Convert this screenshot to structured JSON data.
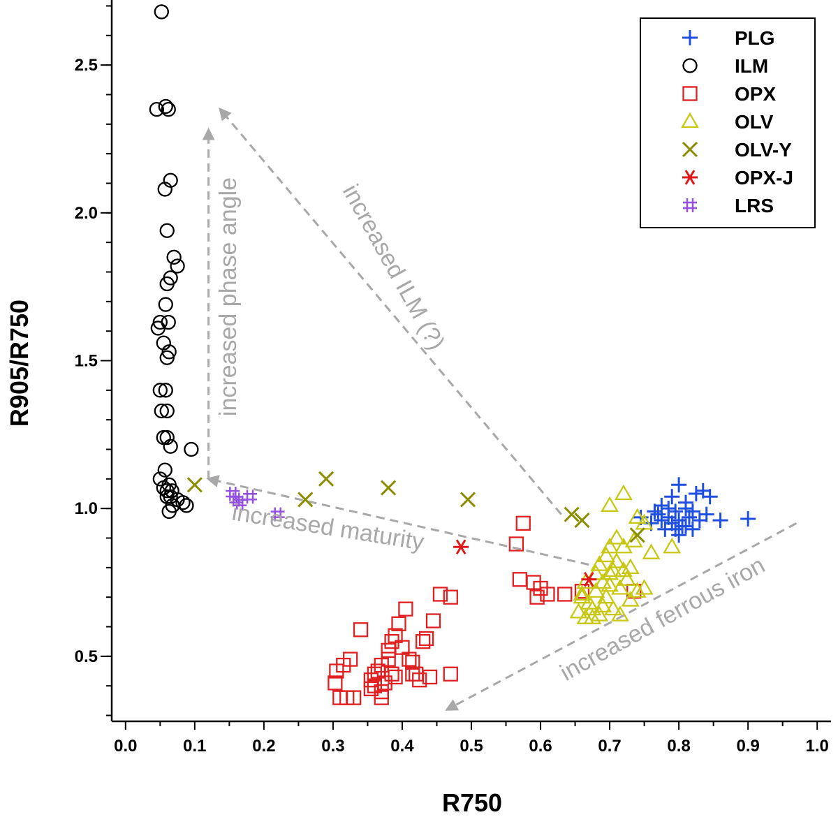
{
  "chart_data": {
    "type": "scatter",
    "xlabel": "R750",
    "ylabel": "R905/R750",
    "xlim": [
      -0.02,
      1.02
    ],
    "ylim": [
      0.28,
      2.72
    ],
    "x_ticks": [
      "0.0",
      "0.1",
      "0.2",
      "0.3",
      "0.4",
      "0.5",
      "0.6",
      "0.7",
      "0.8",
      "0.9",
      "1.0"
    ],
    "x_tick_values": [
      0,
      0.1,
      0.2,
      0.3,
      0.4,
      0.5,
      0.6,
      0.7,
      0.8,
      0.9,
      1.0
    ],
    "y_ticks": [
      "0.5",
      "1.0",
      "1.5",
      "2.0",
      "2.5"
    ],
    "y_tick_values": [
      0.5,
      1.0,
      1.5,
      2.0,
      2.5
    ],
    "legend_position": "top-right",
    "grid": false,
    "series": [
      {
        "name": "PLG",
        "marker": "plus",
        "color": "#1f4fe0",
        "points": [
          [
            0.745,
            0.97
          ],
          [
            0.76,
            0.95
          ],
          [
            0.77,
            0.98
          ],
          [
            0.775,
            1.01
          ],
          [
            0.78,
            0.93
          ],
          [
            0.785,
            0.97
          ],
          [
            0.79,
            0.95
          ],
          [
            0.79,
            1.04
          ],
          [
            0.795,
            0.99
          ],
          [
            0.8,
            0.96
          ],
          [
            0.8,
            1.08
          ],
          [
            0.805,
            0.94
          ],
          [
            0.81,
            1.0
          ],
          [
            0.81,
            1.02
          ],
          [
            0.815,
            0.97
          ],
          [
            0.82,
            0.93
          ],
          [
            0.82,
            0.99
          ],
          [
            0.825,
            1.05
          ],
          [
            0.83,
            0.96
          ],
          [
            0.835,
            1.06
          ],
          [
            0.84,
            0.98
          ],
          [
            0.845,
            1.04
          ],
          [
            0.86,
            0.96
          ],
          [
            0.9,
            0.965
          ],
          [
            0.775,
            0.96
          ],
          [
            0.8,
            0.91
          ],
          [
            0.785,
            1.0
          ],
          [
            0.765,
            0.99
          ],
          [
            0.81,
            0.94
          ],
          [
            0.795,
            0.93
          ]
        ]
      },
      {
        "name": "ILM",
        "marker": "circle",
        "color": "#000000",
        "points": [
          [
            0.052,
            2.68
          ],
          [
            0.045,
            2.35
          ],
          [
            0.058,
            2.36
          ],
          [
            0.062,
            2.35
          ],
          [
            0.065,
            2.11
          ],
          [
            0.057,
            2.08
          ],
          [
            0.06,
            1.94
          ],
          [
            0.07,
            1.85
          ],
          [
            0.075,
            1.82
          ],
          [
            0.065,
            1.78
          ],
          [
            0.06,
            1.76
          ],
          [
            0.058,
            1.69
          ],
          [
            0.05,
            1.63
          ],
          [
            0.062,
            1.63
          ],
          [
            0.047,
            1.61
          ],
          [
            0.055,
            1.56
          ],
          [
            0.063,
            1.53
          ],
          [
            0.06,
            1.51
          ],
          [
            0.05,
            1.4
          ],
          [
            0.058,
            1.4
          ],
          [
            0.052,
            1.33
          ],
          [
            0.06,
            1.33
          ],
          [
            0.055,
            1.24
          ],
          [
            0.06,
            1.24
          ],
          [
            0.065,
            1.21
          ],
          [
            0.095,
            1.2
          ],
          [
            0.057,
            1.13
          ],
          [
            0.05,
            1.1
          ],
          [
            0.063,
            1.08
          ],
          [
            0.055,
            1.07
          ],
          [
            0.06,
            1.06
          ],
          [
            0.067,
            1.06
          ],
          [
            0.06,
            1.04
          ],
          [
            0.065,
            1.04
          ],
          [
            0.075,
            1.03
          ],
          [
            0.083,
            1.02
          ],
          [
            0.088,
            1.01
          ],
          [
            0.068,
            1.01
          ],
          [
            0.063,
            0.99
          ]
        ]
      },
      {
        "name": "OPX",
        "marker": "square",
        "color": "#e02020",
        "points": [
          [
            0.303,
            0.41
          ],
          [
            0.31,
            0.36
          ],
          [
            0.305,
            0.45
          ],
          [
            0.315,
            0.47
          ],
          [
            0.32,
            0.36
          ],
          [
            0.325,
            0.49
          ],
          [
            0.33,
            0.36
          ],
          [
            0.34,
            0.59
          ],
          [
            0.355,
            0.42
          ],
          [
            0.36,
            0.4
          ],
          [
            0.365,
            0.45
          ],
          [
            0.37,
            0.47
          ],
          [
            0.37,
            0.38
          ],
          [
            0.375,
            0.41
          ],
          [
            0.38,
            0.52
          ],
          [
            0.385,
            0.55
          ],
          [
            0.39,
            0.57
          ],
          [
            0.395,
            0.61
          ],
          [
            0.385,
            0.44
          ],
          [
            0.38,
            0.49
          ],
          [
            0.39,
            0.43
          ],
          [
            0.405,
            0.66
          ],
          [
            0.41,
            0.49
          ],
          [
            0.415,
            0.44
          ],
          [
            0.42,
            0.44
          ],
          [
            0.425,
            0.42
          ],
          [
            0.43,
            0.55
          ],
          [
            0.435,
            0.56
          ],
          [
            0.44,
            0.43
          ],
          [
            0.445,
            0.62
          ],
          [
            0.455,
            0.71
          ],
          [
            0.37,
            0.36
          ],
          [
            0.36,
            0.44
          ],
          [
            0.355,
            0.39
          ],
          [
            0.4,
            0.53
          ],
          [
            0.47,
            0.7
          ],
          [
            0.47,
            0.44
          ],
          [
            0.565,
            0.88
          ],
          [
            0.575,
            0.95
          ],
          [
            0.57,
            0.76
          ],
          [
            0.59,
            0.75
          ],
          [
            0.6,
            0.73
          ],
          [
            0.595,
            0.7
          ],
          [
            0.61,
            0.71
          ],
          [
            0.635,
            0.71
          ],
          [
            0.66,
            0.72
          ],
          [
            0.735,
            0.72
          ],
          [
            0.415,
            0.48
          ]
        ]
      },
      {
        "name": "OLV",
        "marker": "triangle",
        "color": "#c8c814",
        "points": [
          [
            0.655,
            0.65
          ],
          [
            0.66,
            0.7
          ],
          [
            0.665,
            0.63
          ],
          [
            0.67,
            0.68
          ],
          [
            0.675,
            0.66
          ],
          [
            0.68,
            0.72
          ],
          [
            0.685,
            0.64
          ],
          [
            0.69,
            0.75
          ],
          [
            0.695,
            0.7
          ],
          [
            0.7,
            0.78
          ],
          [
            0.705,
            0.66
          ],
          [
            0.71,
            0.82
          ],
          [
            0.715,
            0.73
          ],
          [
            0.72,
            0.87
          ],
          [
            0.725,
            0.76
          ],
          [
            0.73,
            0.8
          ],
          [
            0.735,
            0.89
          ],
          [
            0.74,
            0.72
          ],
          [
            0.74,
            0.97
          ],
          [
            0.7,
            0.87
          ],
          [
            0.7,
            1.01
          ],
          [
            0.72,
            1.05
          ],
          [
            0.75,
            0.95
          ],
          [
            0.76,
            0.85
          ],
          [
            0.79,
            0.87
          ],
          [
            0.665,
            0.75
          ],
          [
            0.68,
            0.78
          ],
          [
            0.69,
            0.67
          ],
          [
            0.7,
            0.74
          ],
          [
            0.71,
            0.9
          ],
          [
            0.72,
            0.79
          ],
          [
            0.73,
            0.69
          ],
          [
            0.75,
            0.73
          ],
          [
            0.66,
            0.71
          ],
          [
            0.695,
            0.84
          ],
          [
            0.685,
            0.81
          ],
          [
            0.705,
            0.79
          ],
          [
            0.715,
            0.64
          ],
          [
            0.675,
            0.63
          ]
        ]
      },
      {
        "name": "OLV-Y",
        "marker": "cross",
        "color": "#8c8c00",
        "points": [
          [
            0.1,
            1.08
          ],
          [
            0.26,
            1.03
          ],
          [
            0.29,
            1.1
          ],
          [
            0.38,
            1.07
          ],
          [
            0.495,
            1.03
          ],
          [
            0.645,
            0.98
          ],
          [
            0.66,
            0.96
          ],
          [
            0.74,
            0.91
          ]
        ]
      },
      {
        "name": "OPX-J",
        "marker": "asterisk",
        "color": "#e01818",
        "points": [
          [
            0.485,
            0.87
          ],
          [
            0.67,
            0.76
          ]
        ]
      },
      {
        "name": "LRS",
        "marker": "hash",
        "color": "#9650e0",
        "points": [
          [
            0.155,
            1.05
          ],
          [
            0.16,
            1.03
          ],
          [
            0.165,
            1.02
          ],
          [
            0.18,
            1.04
          ],
          [
            0.22,
            0.98
          ]
        ]
      }
    ],
    "annotations": [
      {
        "text": "increased phase angle"
      },
      {
        "text": "increased ILM (?)"
      },
      {
        "text": "increased maturity"
      },
      {
        "text": "increased ferrous iron"
      }
    ]
  }
}
